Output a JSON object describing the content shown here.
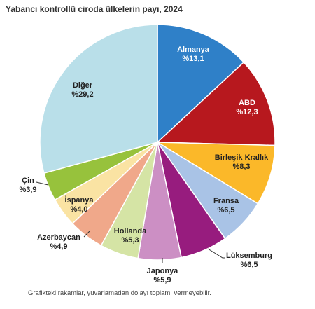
{
  "chart_data": {
    "type": "pie",
    "title": "Yabancı kontrollü ciroda ülkelerin payı, 2024",
    "footnote": "Grafikteki rakamlar, yuvarlamadan dolayı toplamı vermeyebilir.",
    "legend": "none",
    "slices": [
      {
        "name": "Almanya",
        "value": 13.1,
        "label": "%13,1",
        "color": "#2f80c8"
      },
      {
        "name": "ABD",
        "value": 12.3,
        "label": "%12,3",
        "color": "#b7181e"
      },
      {
        "name": "Birleşik Krallık",
        "value": 8.3,
        "label": "%8,3",
        "color": "#fbb829"
      },
      {
        "name": "Fransa",
        "value": 6.5,
        "label": "%6,5",
        "color": "#a9c3e6"
      },
      {
        "name": "Lüksemburg",
        "value": 6.5,
        "label": "%6,5",
        "color": "#971c7e"
      },
      {
        "name": "Japonya",
        "value": 5.9,
        "label": "%5,9",
        "color": "#cc8fc4"
      },
      {
        "name": "Hollanda",
        "value": 5.3,
        "label": "%5,3",
        "color": "#d5e4a5"
      },
      {
        "name": "Azerbaycan",
        "value": 4.9,
        "label": "%4,9",
        "color": "#f0a88a"
      },
      {
        "name": "İspanya",
        "value": 4.0,
        "label": "%4,0",
        "color": "#fae3a3"
      },
      {
        "name": "Çin",
        "value": 3.9,
        "label": "%3,9",
        "color": "#97c23c"
      },
      {
        "name": "Diğer",
        "value": 29.2,
        "label": "%29,2",
        "color": "#b9dfe9"
      }
    ]
  }
}
